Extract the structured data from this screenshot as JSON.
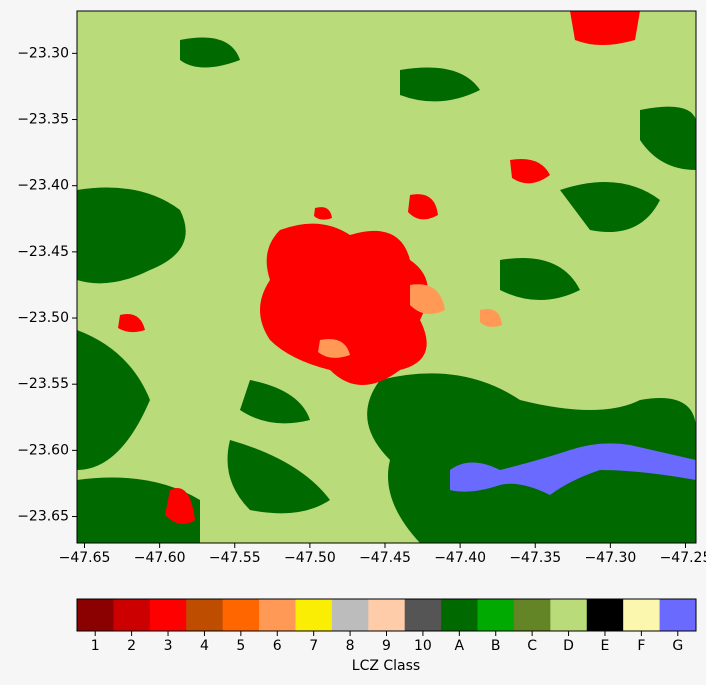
{
  "chart_data": {
    "type": "raster",
    "xlim": [
      -47.655,
      -47.243
    ],
    "ylim": [
      -23.67,
      -23.268
    ],
    "xticks": [
      {
        "value": -47.65,
        "label": "−47.65"
      },
      {
        "value": -47.6,
        "label": "−47.60"
      },
      {
        "value": -47.55,
        "label": "−47.55"
      },
      {
        "value": -47.5,
        "label": "−47.50"
      },
      {
        "value": -47.45,
        "label": "−47.45"
      },
      {
        "value": -47.4,
        "label": "−47.40"
      },
      {
        "value": -47.35,
        "label": "−47.35"
      },
      {
        "value": -47.3,
        "label": "−47.30"
      },
      {
        "value": -47.25,
        "label": "−47.25"
      }
    ],
    "yticks": [
      {
        "value": -23.3,
        "label": "−23.30"
      },
      {
        "value": -23.35,
        "label": "−23.35"
      },
      {
        "value": -23.4,
        "label": "−23.40"
      },
      {
        "value": -23.45,
        "label": "−23.45"
      },
      {
        "value": -23.5,
        "label": "−23.50"
      },
      {
        "value": -23.55,
        "label": "−23.55"
      },
      {
        "value": -23.6,
        "label": "−23.60"
      },
      {
        "value": -23.65,
        "label": "−23.65"
      }
    ],
    "colorbar": {
      "label": "LCZ Class",
      "categories": [
        "1",
        "2",
        "3",
        "4",
        "5",
        "6",
        "7",
        "8",
        "9",
        "10",
        "A",
        "B",
        "C",
        "D",
        "E",
        "F",
        "G"
      ],
      "colors": [
        "#8b0000",
        "#cc0000",
        "#ff0000",
        "#bf4d00",
        "#ff6600",
        "#ff9955",
        "#faee05",
        "#bcbcbc",
        "#ffccaa",
        "#555555",
        "#006a00",
        "#00aa00",
        "#648525",
        "#b9db79",
        "#000000",
        "#fbf7ae",
        "#6a6aff"
      ]
    }
  }
}
